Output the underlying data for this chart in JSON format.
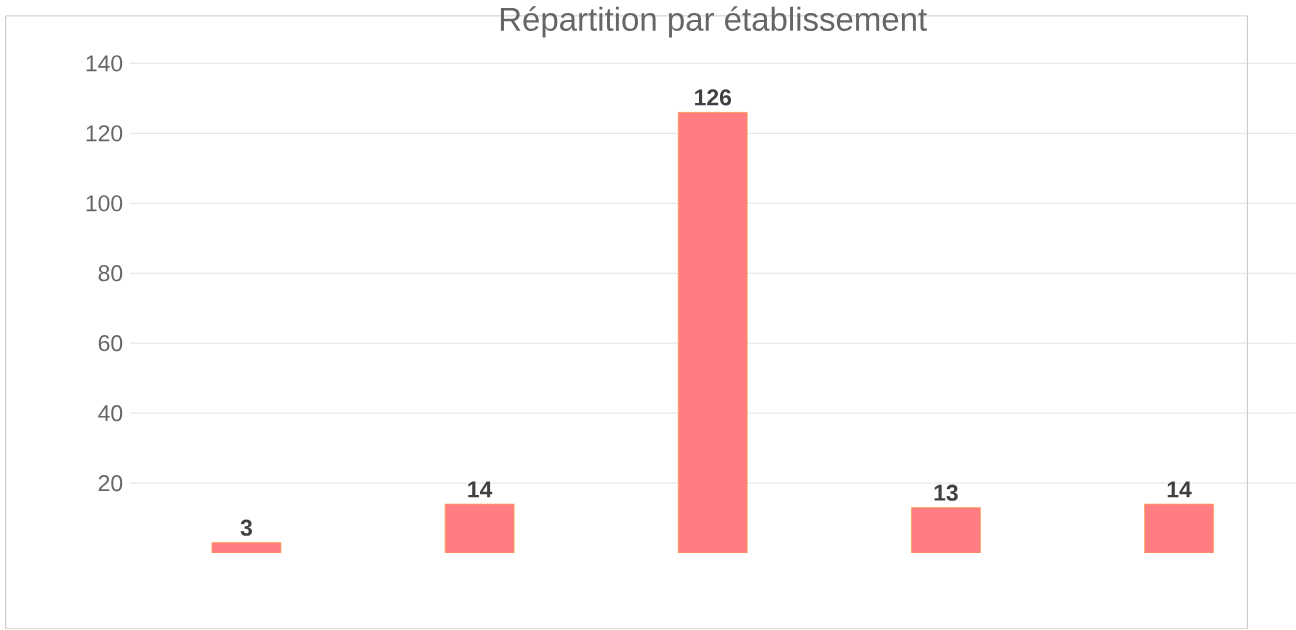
{
  "chart_data": {
    "type": "bar",
    "title": "Répartition par établissement",
    "categories": [
      null,
      null,
      null,
      null,
      null
    ],
    "values": [
      3,
      14,
      126,
      13,
      14
    ],
    "color": "#ff7c80",
    "ylim": [
      0,
      140
    ],
    "yticks": [
      20,
      40,
      60,
      80,
      100,
      120,
      140
    ],
    "grid": "y",
    "data_labels": true
  }
}
